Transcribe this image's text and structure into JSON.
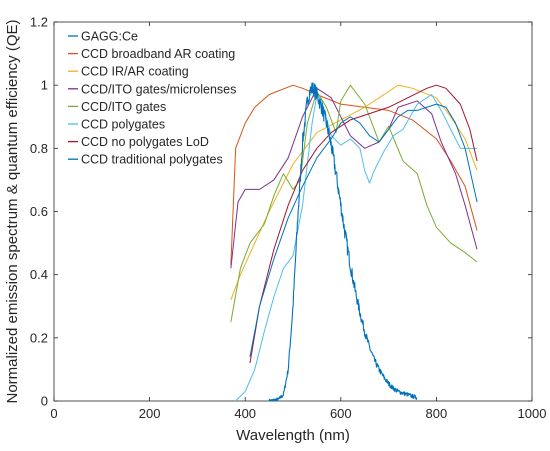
{
  "chart_data": {
    "type": "line",
    "xlabel": "Wavelength (nm)",
    "ylabel": "Normalized emission spectrum & quantum efficiency (QE)",
    "xlim": [
      0,
      1000
    ],
    "ylim": [
      0,
      1.2
    ],
    "xticks": [
      0,
      200,
      400,
      600,
      800,
      1000
    ],
    "yticks": [
      0,
      0.2,
      0.4,
      0.6,
      0.8,
      1.0,
      1.2
    ],
    "xtick_labels": [
      "0",
      "200",
      "400",
      "600",
      "800",
      "1000"
    ],
    "ytick_labels": [
      "0",
      "0.2",
      "0.4",
      "0.6",
      "0.8",
      "1",
      "1.2"
    ],
    "grid": false,
    "legend_position": "top-left",
    "series": [
      {
        "name": "GAGG:Ce",
        "color": "#0072BD",
        "noisy": true,
        "x": [
          450,
          470,
          480,
          490,
          500,
          510,
          520,
          530,
          535,
          540,
          545,
          550,
          555,
          560,
          570,
          580,
          590,
          600,
          610,
          620,
          630,
          640,
          650,
          660,
          670,
          680,
          690,
          700,
          710,
          720,
          740,
          760
        ],
        "y": [
          0,
          0.005,
          0.02,
          0.1,
          0.3,
          0.58,
          0.82,
          0.95,
          0.98,
          0.99,
          0.985,
          0.97,
          0.95,
          0.93,
          0.88,
          0.81,
          0.72,
          0.62,
          0.52,
          0.43,
          0.35,
          0.28,
          0.22,
          0.17,
          0.13,
          0.1,
          0.075,
          0.055,
          0.04,
          0.03,
          0.02,
          0.01
        ]
      },
      {
        "name": "CCD broadband AR coating",
        "color": "#D95319",
        "noisy": false,
        "x": [
          370,
          380,
          400,
          420,
          450,
          500,
          520,
          550,
          600,
          650,
          700,
          750,
          800,
          830,
          860,
          885
        ],
        "y": [
          0.43,
          0.8,
          0.88,
          0.93,
          0.97,
          1.0,
          0.99,
          0.97,
          0.94,
          0.93,
          0.92,
          0.89,
          0.83,
          0.76,
          0.68,
          0.54
        ]
      },
      {
        "name": "CCD IR/AR coating",
        "color": "#EDB120",
        "noisy": false,
        "x": [
          370,
          390,
          420,
          450,
          480,
          500,
          530,
          550,
          600,
          650,
          700,
          720,
          750,
          800,
          830,
          860,
          885
        ],
        "y": [
          0.32,
          0.4,
          0.5,
          0.6,
          0.69,
          0.75,
          0.81,
          0.85,
          0.89,
          0.93,
          0.98,
          1.0,
          0.99,
          0.96,
          0.9,
          0.83,
          0.73
        ]
      },
      {
        "name": "CCD/ITO gates/microlenses",
        "color": "#7E2F8E",
        "noisy": false,
        "x": [
          370,
          385,
          400,
          430,
          460,
          490,
          520,
          550,
          580,
          620,
          650,
          680,
          700,
          720,
          760,
          790,
          810,
          840,
          860,
          885
        ],
        "y": [
          0.42,
          0.63,
          0.67,
          0.67,
          0.7,
          0.77,
          0.9,
          0.99,
          0.96,
          0.84,
          0.8,
          0.82,
          0.86,
          0.93,
          0.95,
          0.91,
          0.82,
          0.72,
          0.62,
          0.48
        ]
      },
      {
        "name": "CCD/ITO gates",
        "color": "#77AC30",
        "noisy": false,
        "x": [
          370,
          390,
          410,
          440,
          460,
          480,
          500,
          515,
          530,
          550,
          570,
          590,
          600,
          620,
          650,
          680,
          700,
          730,
          760,
          780,
          800,
          830,
          860,
          885
        ],
        "y": [
          0.25,
          0.42,
          0.5,
          0.56,
          0.65,
          0.72,
          0.67,
          0.7,
          0.88,
          0.98,
          0.93,
          0.85,
          0.95,
          1.0,
          0.94,
          0.82,
          0.87,
          0.76,
          0.72,
          0.62,
          0.55,
          0.5,
          0.47,
          0.44
        ]
      },
      {
        "name": "CCD polygates",
        "color": "#4DBEEE",
        "noisy": false,
        "x": [
          380,
          400,
          420,
          440,
          460,
          480,
          500,
          520,
          540,
          550,
          560,
          580,
          600,
          620,
          640,
          650,
          660,
          670,
          690,
          710,
          730,
          760,
          790,
          810,
          830,
          850,
          870,
          885
        ],
        "y": [
          0.0,
          0.03,
          0.1,
          0.22,
          0.33,
          0.42,
          0.46,
          0.62,
          0.88,
          0.97,
          0.95,
          0.84,
          0.81,
          0.83,
          0.8,
          0.73,
          0.69,
          0.73,
          0.79,
          0.84,
          0.86,
          0.94,
          0.97,
          0.92,
          0.86,
          0.8,
          0.8,
          0.8
        ]
      },
      {
        "name": "CCD no polygates LoD",
        "color": "#A2142F",
        "noisy": false,
        "x": [
          410,
          430,
          460,
          490,
          520,
          550,
          580,
          620,
          660,
          700,
          740,
          780,
          800,
          820,
          850,
          870,
          885
        ],
        "y": [
          0.12,
          0.3,
          0.48,
          0.62,
          0.73,
          0.8,
          0.85,
          0.89,
          0.91,
          0.93,
          0.96,
          0.99,
          1.0,
          0.99,
          0.94,
          0.86,
          0.76
        ]
      },
      {
        "name": "CCD traditional polygates",
        "color": "#0072BD",
        "noisy": false,
        "x": [
          410,
          430,
          460,
          490,
          520,
          550,
          580,
          600,
          620,
          640,
          660,
          680,
          700,
          720,
          740,
          760,
          780,
          800,
          820,
          840,
          860,
          885
        ],
        "y": [
          0.14,
          0.3,
          0.45,
          0.58,
          0.68,
          0.77,
          0.83,
          0.88,
          0.9,
          0.88,
          0.84,
          0.82,
          0.86,
          0.9,
          0.92,
          0.92,
          0.93,
          0.94,
          0.93,
          0.88,
          0.8,
          0.63
        ]
      }
    ]
  }
}
